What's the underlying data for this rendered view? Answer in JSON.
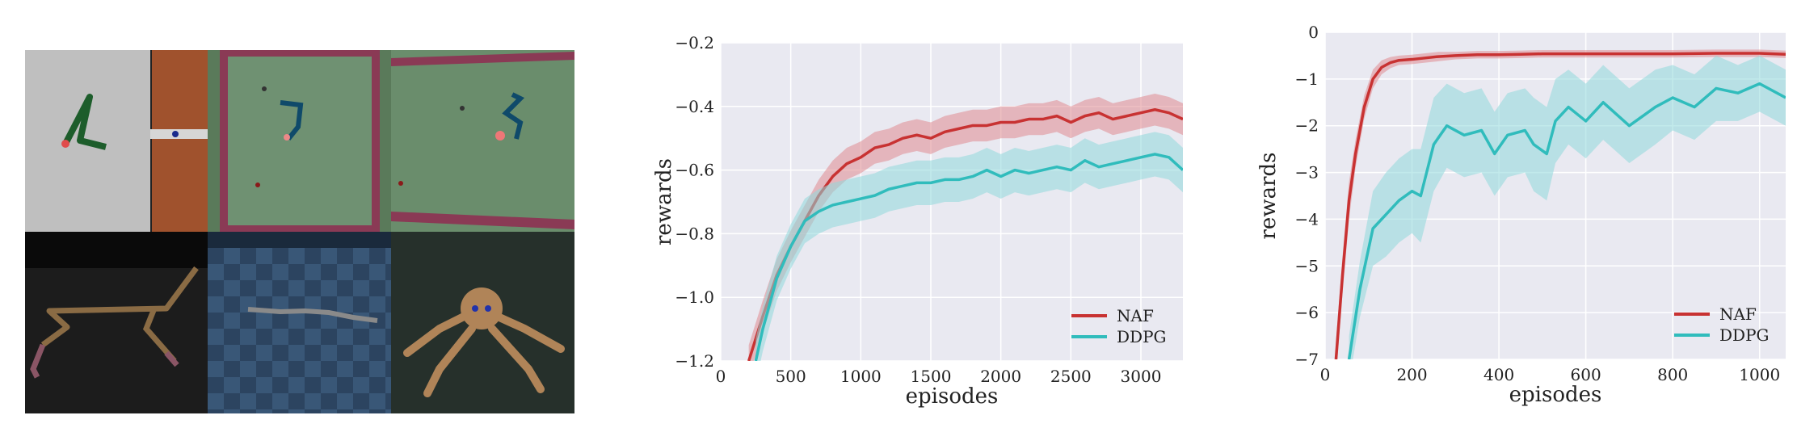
{
  "chart_data": [
    {
      "type": "line",
      "title": "",
      "xlabel": "episodes",
      "ylabel": "rewards",
      "xlim": [
        0,
        3300
      ],
      "ylim": [
        -1.2,
        -0.2
      ],
      "xticks": [
        "0",
        "500",
        "1000",
        "1500",
        "2000",
        "2500",
        "3000"
      ],
      "yticks": [
        "−0.2",
        "−0.4",
        "−0.6",
        "−0.8",
        "−1.0",
        "−1.2"
      ],
      "grid": true,
      "legend_position": "bottom-right",
      "series": [
        {
          "name": "NAF",
          "color": "#c83232",
          "band_color": "#e08a8f",
          "x": [
            200,
            300,
            400,
            500,
            600,
            700,
            800,
            900,
            1000,
            1100,
            1200,
            1300,
            1400,
            1500,
            1600,
            1700,
            1800,
            1900,
            2000,
            2100,
            2200,
            2300,
            2400,
            2500,
            2600,
            2700,
            2800,
            2900,
            3000,
            3100,
            3200,
            3300
          ],
          "y": [
            -1.2,
            -1.06,
            -0.93,
            -0.84,
            -0.76,
            -0.68,
            -0.62,
            -0.58,
            -0.56,
            -0.53,
            -0.52,
            -0.5,
            -0.49,
            -0.5,
            -0.48,
            -0.47,
            -0.46,
            -0.46,
            -0.45,
            -0.45,
            -0.44,
            -0.44,
            -0.43,
            -0.45,
            -0.43,
            -0.42,
            -0.44,
            -0.43,
            -0.42,
            -0.41,
            -0.42,
            -0.44
          ],
          "band": [
            0.05,
            0.05,
            0.05,
            0.05,
            0.05,
            0.05,
            0.05,
            0.05,
            0.05,
            0.05,
            0.05,
            0.05,
            0.05,
            0.05,
            0.05,
            0.05,
            0.05,
            0.05,
            0.05,
            0.05,
            0.05,
            0.05,
            0.05,
            0.05,
            0.05,
            0.05,
            0.05,
            0.05,
            0.05,
            0.05,
            0.05,
            0.05
          ]
        },
        {
          "name": "DDPG",
          "color": "#30bcbc",
          "band_color": "#90d8da",
          "x": [
            250,
            300,
            400,
            500,
            600,
            700,
            800,
            900,
            1000,
            1100,
            1200,
            1300,
            1400,
            1500,
            1600,
            1700,
            1800,
            1900,
            2000,
            2100,
            2200,
            2300,
            2400,
            2500,
            2600,
            2700,
            2800,
            2900,
            3000,
            3100,
            3200,
            3300
          ],
          "y": [
            -1.2,
            -1.1,
            -0.94,
            -0.84,
            -0.76,
            -0.73,
            -0.71,
            -0.7,
            -0.69,
            -0.68,
            -0.66,
            -0.65,
            -0.64,
            -0.64,
            -0.63,
            -0.63,
            -0.62,
            -0.6,
            -0.62,
            -0.6,
            -0.61,
            -0.6,
            -0.59,
            -0.6,
            -0.57,
            -0.59,
            -0.58,
            -0.57,
            -0.56,
            -0.55,
            -0.56,
            -0.6
          ],
          "band": [
            0.07,
            0.07,
            0.07,
            0.07,
            0.07,
            0.07,
            0.07,
            0.07,
            0.07,
            0.07,
            0.07,
            0.07,
            0.07,
            0.07,
            0.07,
            0.07,
            0.07,
            0.07,
            0.07,
            0.07,
            0.07,
            0.07,
            0.07,
            0.07,
            0.07,
            0.07,
            0.07,
            0.07,
            0.07,
            0.07,
            0.07,
            0.07
          ]
        }
      ]
    },
    {
      "type": "line",
      "title": "",
      "xlabel": "episodes",
      "ylabel": "rewards",
      "xlim": [
        0,
        1060
      ],
      "ylim": [
        -7,
        0
      ],
      "xticks": [
        "0",
        "200",
        "400",
        "600",
        "800",
        "1000"
      ],
      "yticks": [
        "0",
        "−1",
        "−2",
        "−3",
        "−4",
        "−5",
        "−6",
        "−7"
      ],
      "grid": true,
      "legend_position": "bottom-right",
      "series": [
        {
          "name": "NAF",
          "color": "#c83232",
          "band_color": "#e08a8f",
          "x": [
            25,
            40,
            55,
            70,
            90,
            110,
            130,
            150,
            170,
            200,
            230,
            260,
            300,
            350,
            400,
            450,
            500,
            600,
            700,
            800,
            900,
            1000,
            1060
          ],
          "y": [
            -7,
            -5.2,
            -3.6,
            -2.6,
            -1.6,
            -1.0,
            -0.75,
            -0.65,
            -0.6,
            -0.58,
            -0.55,
            -0.52,
            -0.5,
            -0.48,
            -0.48,
            -0.47,
            -0.46,
            -0.46,
            -0.46,
            -0.46,
            -0.45,
            -0.45,
            -0.47
          ],
          "band": [
            0.4,
            0.4,
            0.4,
            0.3,
            0.25,
            0.2,
            0.15,
            0.12,
            0.1,
            0.1,
            0.1,
            0.1,
            0.08,
            0.08,
            0.08,
            0.08,
            0.08,
            0.08,
            0.08,
            0.08,
            0.08,
            0.08,
            0.08
          ]
        },
        {
          "name": "DDPG",
          "color": "#30bcbc",
          "band_color": "#90d8da",
          "x": [
            55,
            80,
            110,
            140,
            170,
            200,
            220,
            250,
            280,
            320,
            360,
            390,
            420,
            460,
            480,
            510,
            530,
            560,
            600,
            640,
            700,
            760,
            800,
            850,
            900,
            950,
            1000,
            1060
          ],
          "y": [
            -7,
            -5.5,
            -4.2,
            -3.9,
            -3.6,
            -3.4,
            -3.5,
            -2.4,
            -2.0,
            -2.2,
            -2.1,
            -2.6,
            -2.2,
            -2.1,
            -2.4,
            -2.6,
            -1.9,
            -1.6,
            -1.9,
            -1.5,
            -2.0,
            -1.6,
            -1.4,
            -1.6,
            -1.2,
            -1.3,
            -1.1,
            -1.4
          ],
          "band": [
            0.5,
            0.6,
            0.8,
            0.9,
            0.9,
            0.9,
            1.0,
            1.0,
            0.9,
            0.9,
            0.9,
            0.9,
            0.9,
            0.9,
            1.0,
            1.0,
            0.9,
            0.8,
            0.8,
            0.8,
            0.8,
            0.8,
            0.7,
            0.7,
            0.7,
            0.6,
            0.6,
            0.6
          ]
        }
      ]
    }
  ]
}
